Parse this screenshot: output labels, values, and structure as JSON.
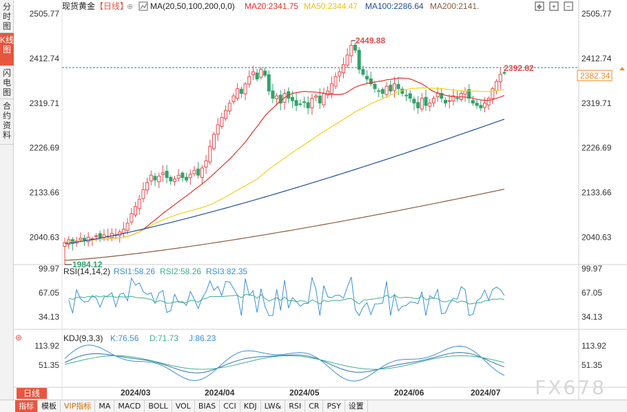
{
  "sidebar": {
    "tabs": [
      {
        "label": "分时图",
        "active": false
      },
      {
        "label": "K线图",
        "active": true
      },
      {
        "label": "闪电图",
        "active": false
      },
      {
        "label": "合约资料",
        "active": false
      }
    ]
  },
  "header": {
    "instrument": "现货黄金",
    "period": "【日线】",
    "ma_label": "MA(20,50,100,200,0,0)",
    "ma20": "MA20:2341.75",
    "ma50": "MA50:2344.47",
    "ma100": "MA100:2286.64",
    "ma200": "MA200:2141."
  },
  "colors": {
    "up": "#e84a4a",
    "down": "#2fa46a",
    "ma20": "#e8302a",
    "ma50": "#f2d21c",
    "ma100": "#1f4e9a",
    "ma200": "#8c5a3c",
    "rsi1": "#3a8fd8",
    "rsi2": "#3cb08a",
    "kdj": "#3a8fd8"
  },
  "chart_data": {
    "type": "candlestick",
    "y_ticks": [
      "2505.77",
      "2412.74",
      "2319.71",
      "2226.69",
      "2133.66",
      "2040.63"
    ],
    "ylim": [
      1984.12,
      2505.77
    ],
    "x_ticks": [
      "2024/03",
      "2024/04",
      "2024/05",
      "2024/06",
      "2024/07"
    ],
    "annotations": {
      "high": "2449.88",
      "low": "1984.12",
      "recent_high": "2392.82",
      "last_price": "2382.34"
    },
    "ma_end_values": {
      "ma20": 2341.75,
      "ma50": 2344.47,
      "ma100": 2286.64,
      "ma200": 2141
    }
  },
  "rsi_panel": {
    "title": "RSI(14,14,2)",
    "rsi1": "RSI1:58.26",
    "rsi2": "RSI2:58.26",
    "rsi3": "RSI3:82.35",
    "ticks": [
      "99.97",
      "67.05",
      "34.13"
    ]
  },
  "kdj_panel": {
    "title": "KDJ(9,3,3)",
    "k": "K:76.56",
    "d": "D:71.73",
    "j": "J:86.23",
    "ticks": [
      "113.92",
      "51.35"
    ]
  },
  "period_button": "日线",
  "bottom_tabs": [
    "指标",
    "模板",
    "VIP指标",
    "MA",
    "MACD",
    "BOLL",
    "VOL",
    "BIAS",
    "CCI",
    "KDJ",
    "LW&",
    "RSI",
    "CR",
    "PSY",
    "设置"
  ],
  "watermark": "FX678"
}
